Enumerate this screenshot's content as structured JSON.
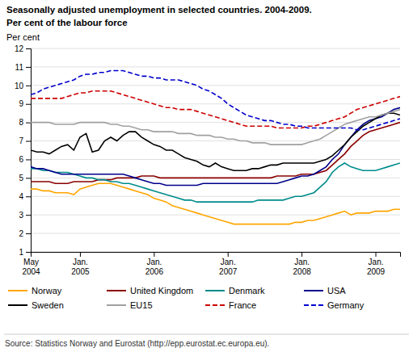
{
  "chart_data": {
    "type": "line",
    "title": "Seasonally adjusted unemployment in selected countries. 2004-2009.",
    "subtitle": "Per cent of the labour force",
    "ylabel": "Per cent",
    "annotations": [
      "Source: Statistics Norway and Eurostat (http://epp.eurostat.ec.europa.eu)."
    ],
    "categories": [
      "May\n2004",
      null,
      null,
      null,
      null,
      null,
      null,
      null,
      "Jan.\n2005",
      null,
      null,
      null,
      null,
      null,
      null,
      null,
      null,
      null,
      null,
      null,
      "Jan.\n2006",
      null,
      null,
      null,
      null,
      null,
      null,
      null,
      null,
      null,
      null,
      null,
      "Jan.\n2007",
      null,
      null,
      null,
      null,
      null,
      null,
      null,
      null,
      null,
      null,
      null,
      "Jan.\n2008",
      null,
      null,
      null,
      null,
      null,
      null,
      null,
      null,
      null,
      null,
      null,
      "Jan.\n2009",
      null,
      null,
      null,
      null
    ],
    "ylim": [
      1,
      12
    ],
    "yticks": [
      1,
      2,
      3,
      4,
      5,
      6,
      7,
      8,
      9,
      10,
      11,
      12
    ],
    "grid": true,
    "series": [
      {
        "name": "Norway",
        "color": "#FFA500",
        "line_style": "solid",
        "values": [
          4.4,
          4.4,
          4.3,
          4.3,
          4.2,
          4.2,
          4.2,
          4.1,
          4.4,
          4.5,
          4.6,
          4.7,
          4.7,
          4.7,
          4.6,
          4.5,
          4.4,
          4.3,
          4.2,
          4.1,
          3.9,
          3.8,
          3.7,
          3.5,
          3.4,
          3.3,
          3.2,
          3.1,
          3.0,
          2.9,
          2.8,
          2.7,
          2.6,
          2.5,
          2.5,
          2.5,
          2.5,
          2.5,
          2.5,
          2.5,
          2.5,
          2.5,
          2.5,
          2.6,
          2.6,
          2.7,
          2.7,
          2.8,
          2.9,
          3.0,
          3.1,
          3.2,
          3.0,
          3.1,
          3.1,
          3.1,
          3.2,
          3.2,
          3.2,
          3.3,
          3.3
        ]
      },
      {
        "name": "United Kingdom",
        "color": "#8B0000",
        "line_style": "solid",
        "values": [
          4.8,
          4.8,
          4.8,
          4.8,
          4.7,
          4.7,
          4.7,
          4.8,
          4.8,
          4.8,
          4.8,
          4.9,
          4.9,
          4.9,
          5.0,
          5.0,
          5.0,
          5.0,
          5.1,
          5.1,
          5.1,
          5.0,
          5.0,
          5.0,
          5.0,
          5.0,
          5.0,
          5.0,
          5.0,
          5.0,
          5.0,
          5.0,
          5.0,
          5.0,
          5.0,
          5.0,
          5.0,
          5.0,
          5.0,
          5.0,
          5.1,
          5.1,
          5.1,
          5.1,
          5.2,
          5.2,
          5.2,
          5.3,
          5.4,
          5.7,
          6.0,
          6.3,
          6.7,
          7.0,
          7.3,
          7.5,
          7.6,
          7.7,
          7.8,
          7.9,
          8.0
        ]
      },
      {
        "name": "Denmark",
        "color": "#008B8B",
        "line_style": "solid",
        "values": [
          5.5,
          5.5,
          5.4,
          5.4,
          5.3,
          5.3,
          5.3,
          5.2,
          5.1,
          5.0,
          5.0,
          4.9,
          4.9,
          4.8,
          4.8,
          4.7,
          4.7,
          4.6,
          4.5,
          4.4,
          4.3,
          4.2,
          4.1,
          4.0,
          3.9,
          3.8,
          3.8,
          3.7,
          3.7,
          3.7,
          3.7,
          3.7,
          3.7,
          3.7,
          3.7,
          3.7,
          3.7,
          3.8,
          3.8,
          3.8,
          3.8,
          3.8,
          3.9,
          4.0,
          4.0,
          4.1,
          4.2,
          4.5,
          4.8,
          5.3,
          5.6,
          5.8,
          5.6,
          5.5,
          5.4,
          5.4,
          5.4,
          5.5,
          5.6,
          5.7,
          5.8
        ]
      },
      {
        "name": "USA",
        "color": "#00008B",
        "line_style": "solid",
        "values": [
          5.6,
          5.5,
          5.5,
          5.4,
          5.3,
          5.2,
          5.2,
          5.2,
          5.2,
          5.2,
          5.2,
          5.2,
          5.2,
          5.2,
          5.2,
          5.2,
          5.1,
          5.0,
          4.9,
          4.8,
          4.7,
          4.7,
          4.6,
          4.6,
          4.6,
          4.6,
          4.6,
          4.6,
          4.7,
          4.7,
          4.7,
          4.7,
          4.7,
          4.7,
          4.7,
          4.7,
          4.7,
          4.7,
          4.7,
          4.7,
          4.7,
          4.8,
          4.9,
          5.0,
          5.1,
          5.1,
          5.2,
          5.4,
          5.6,
          6.0,
          6.3,
          6.8,
          7.2,
          7.6,
          7.9,
          8.1,
          8.2,
          8.3,
          8.5,
          8.7,
          8.8
        ]
      },
      {
        "name": "Sweden",
        "color": "#000000",
        "line_style": "solid",
        "values": [
          6.5,
          6.4,
          6.4,
          6.3,
          6.5,
          6.7,
          6.8,
          6.5,
          7.2,
          7.4,
          6.4,
          6.5,
          7.0,
          7.2,
          7.0,
          7.3,
          7.5,
          7.5,
          7.2,
          7.0,
          6.8,
          6.7,
          6.5,
          6.5,
          6.3,
          6.1,
          6.0,
          5.9,
          5.7,
          5.6,
          5.8,
          5.6,
          5.5,
          5.4,
          5.4,
          5.4,
          5.5,
          5.5,
          5.6,
          5.7,
          5.7,
          5.8,
          5.8,
          5.8,
          5.8,
          5.8,
          5.8,
          5.9,
          6.0,
          6.2,
          6.5,
          6.8,
          7.2,
          7.5,
          7.8,
          8.0,
          8.2,
          8.4,
          8.5,
          8.5,
          8.4
        ]
      },
      {
        "name": "EU15",
        "color": "#A0A0A0",
        "line_style": "solid",
        "values": [
          8.0,
          8.0,
          8.0,
          8.0,
          7.9,
          7.9,
          7.9,
          7.9,
          8.0,
          8.0,
          8.0,
          8.0,
          8.0,
          7.9,
          7.9,
          7.8,
          7.8,
          7.7,
          7.6,
          7.6,
          7.5,
          7.5,
          7.5,
          7.5,
          7.4,
          7.4,
          7.4,
          7.3,
          7.3,
          7.3,
          7.2,
          7.2,
          7.1,
          7.1,
          7.0,
          7.0,
          6.9,
          6.9,
          6.9,
          6.8,
          6.8,
          6.8,
          6.8,
          6.8,
          6.8,
          6.9,
          7.0,
          7.1,
          7.3,
          7.5,
          7.7,
          7.9,
          8.0,
          8.1,
          8.2,
          8.3,
          8.3,
          8.4,
          8.5,
          8.6,
          8.7
        ]
      },
      {
        "name": "France",
        "color": "#CC0000",
        "line_style": "dashed",
        "values": [
          9.3,
          9.3,
          9.3,
          9.3,
          9.3,
          9.3,
          9.4,
          9.5,
          9.6,
          9.6,
          9.7,
          9.7,
          9.7,
          9.7,
          9.6,
          9.5,
          9.4,
          9.3,
          9.2,
          9.1,
          9.0,
          8.9,
          8.8,
          8.8,
          8.7,
          8.7,
          8.7,
          8.6,
          8.5,
          8.4,
          8.3,
          8.2,
          8.1,
          8.0,
          7.9,
          7.8,
          7.8,
          7.8,
          7.8,
          7.8,
          7.7,
          7.7,
          7.7,
          7.7,
          7.7,
          7.8,
          7.8,
          7.9,
          8.0,
          8.1,
          8.2,
          8.3,
          8.5,
          8.7,
          8.8,
          8.9,
          9.0,
          9.1,
          9.2,
          9.3,
          9.4
        ]
      },
      {
        "name": "Germany",
        "color": "#0000CC",
        "line_style": "dashed",
        "values": [
          9.5,
          9.6,
          9.8,
          9.9,
          10.0,
          10.1,
          10.2,
          10.3,
          10.5,
          10.6,
          10.6,
          10.7,
          10.7,
          10.8,
          10.8,
          10.8,
          10.7,
          10.6,
          10.5,
          10.5,
          10.4,
          10.4,
          10.3,
          10.3,
          10.3,
          10.2,
          10.1,
          10.0,
          9.8,
          9.7,
          9.5,
          9.3,
          9.0,
          8.8,
          8.6,
          8.4,
          8.3,
          8.2,
          8.1,
          8.1,
          8.0,
          7.9,
          7.9,
          7.8,
          7.8,
          7.7,
          7.7,
          7.7,
          7.7,
          7.7,
          7.7,
          7.7,
          7.7,
          7.6,
          7.6,
          7.7,
          7.8,
          7.9,
          8.0,
          8.1,
          8.2
        ]
      }
    ]
  }
}
